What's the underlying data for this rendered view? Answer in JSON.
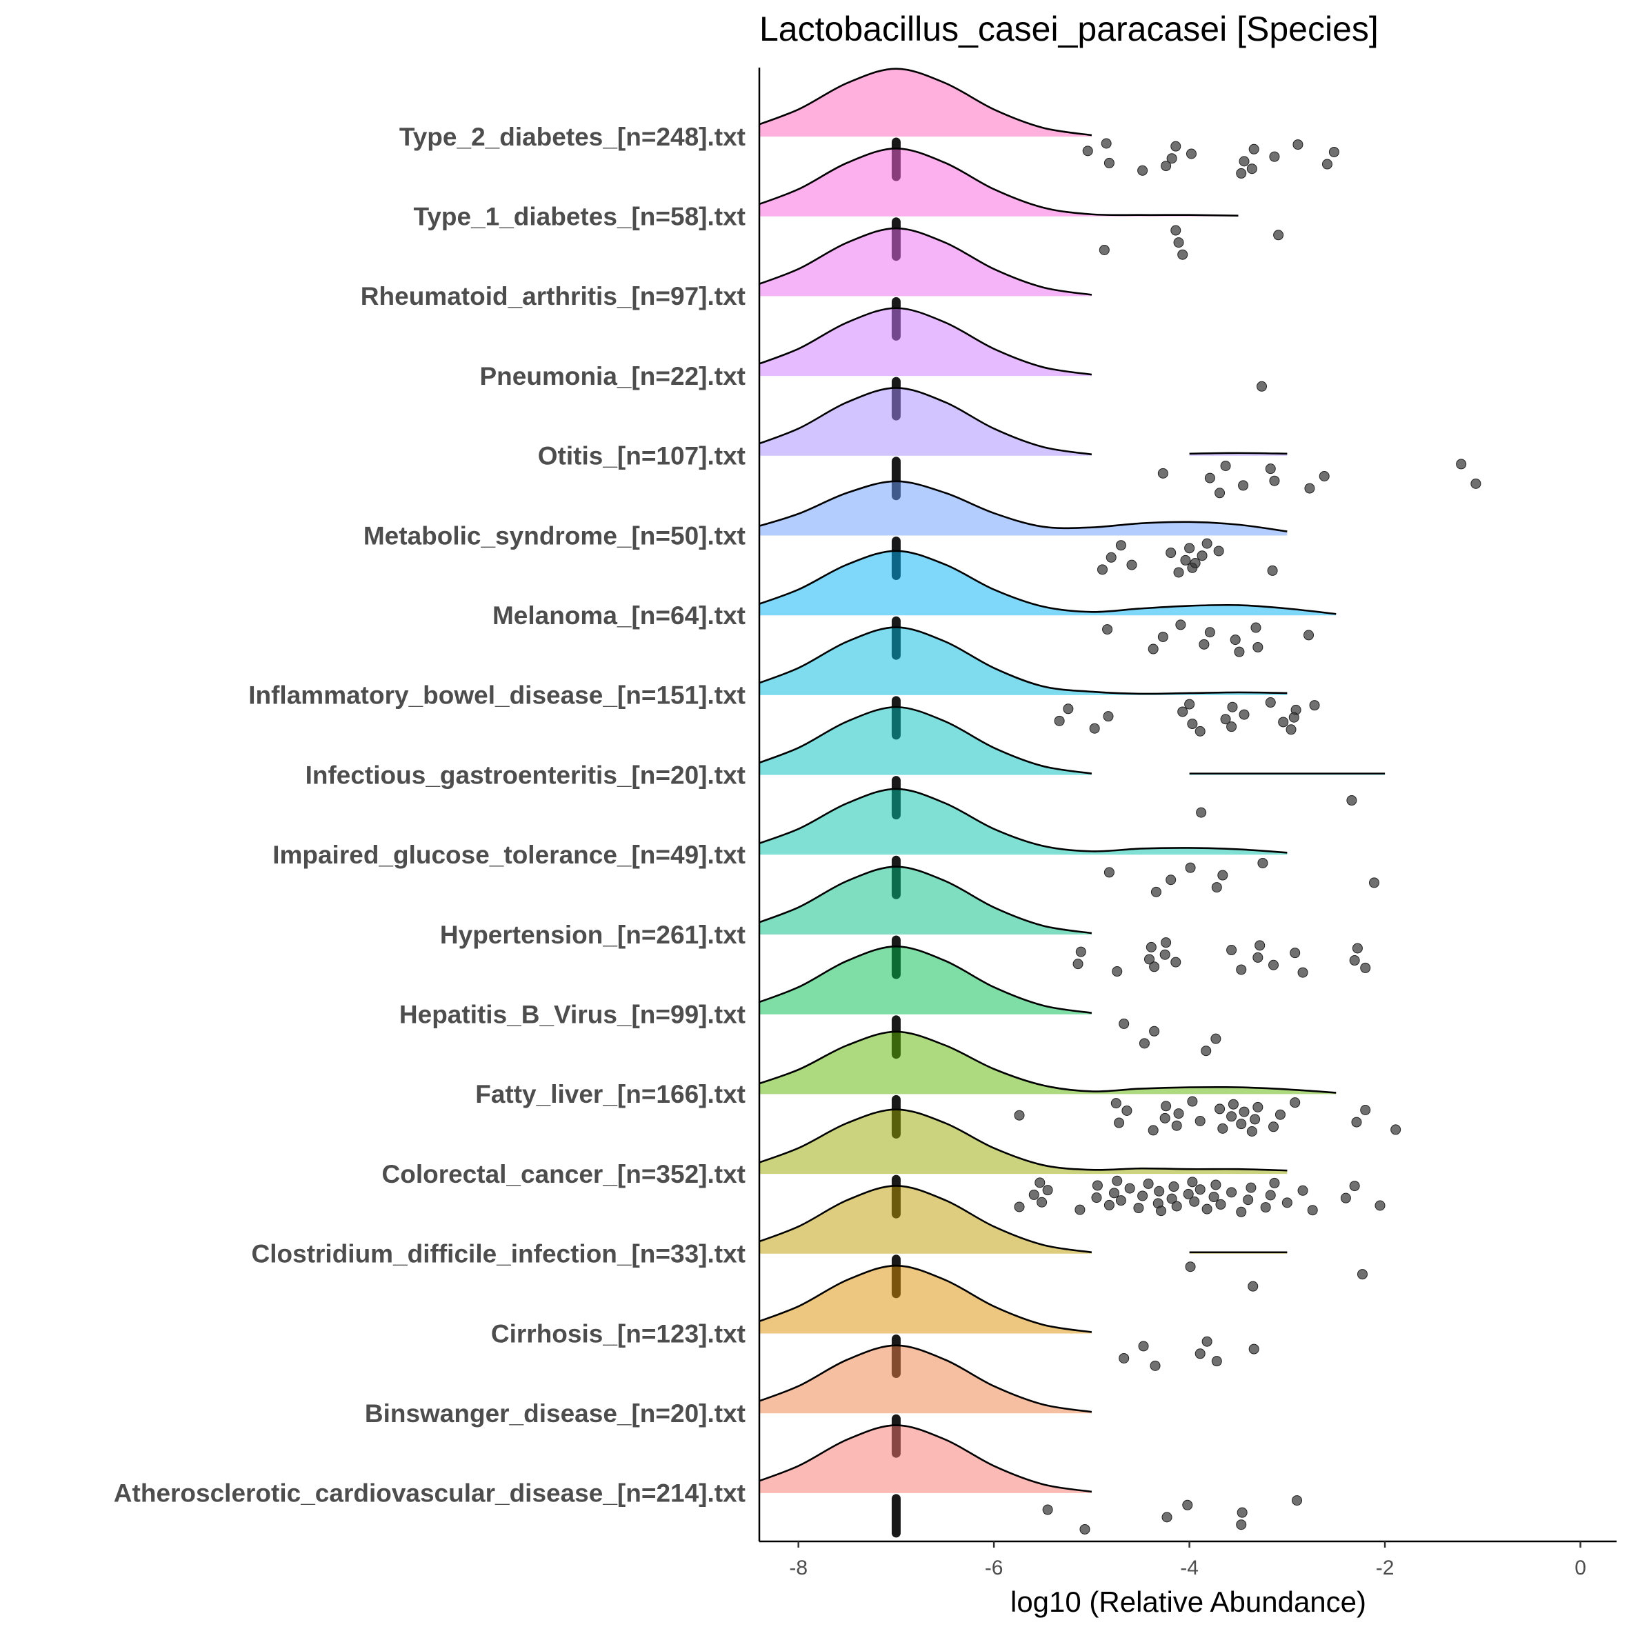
{
  "chart_data": {
    "type": "ridgeline",
    "title": "Lactobacillus_casei_paracasei [Species]",
    "xlabel": "log10 (Relative Abundance)",
    "xlim": [
      -8.4,
      0.37
    ],
    "xticks": [
      -8,
      -6,
      -4,
      -2,
      0
    ],
    "floor": -7,
    "density_x": [
      -8.5,
      -8,
      -7.5,
      -7,
      -6.5,
      -6,
      -5.5,
      -5,
      -4.5,
      -4,
      -3.5,
      -3,
      -2.5,
      -2
    ],
    "series": [
      {
        "name": "Type_2_diabetes_[n=248].txt",
        "color": "#FF62BC",
        "density": [
          0.13,
          0.4,
          0.79,
          1,
          0.79,
          0.4,
          0.13,
          0.02,
          null,
          null,
          null,
          null,
          null,
          null
        ],
        "points": [
          -4.85,
          -4.82,
          -5.04,
          -4.48,
          -4.18,
          -4.14,
          -4.24,
          -3.98,
          -3.47,
          -3.44,
          -3.34,
          -3.36,
          -3.13,
          -2.89,
          -2.59,
          -2.52
        ]
      },
      {
        "name": "Type_1_diabetes_[n=58].txt",
        "color": "#FA62DB",
        "density": [
          0.13,
          0.4,
          0.79,
          1,
          0.79,
          0.4,
          0.13,
          0.03,
          0.02,
          0.02,
          0.01,
          null,
          null,
          null
        ],
        "points": [
          -3.09,
          -4.07,
          -4.11,
          -4.14,
          -4.87
        ]
      },
      {
        "name": "Rheumatoid_arthritis_[n=97].txt",
        "color": "#EC69EF",
        "density": [
          0.13,
          0.4,
          0.79,
          1,
          0.79,
          0.4,
          0.13,
          0.02,
          null,
          null,
          null,
          null,
          null,
          null
        ],
        "points": []
      },
      {
        "name": "Pneumonia_[n=22].txt",
        "color": "#D077FF",
        "density": [
          0.13,
          0.4,
          0.79,
          1,
          0.79,
          0.4,
          0.13,
          0.02,
          null,
          null,
          null,
          null,
          null,
          null
        ],
        "points": [
          -3.26
        ]
      },
      {
        "name": "Otitis_[n=107].txt",
        "color": "#A58AFF",
        "density": [
          0.13,
          0.4,
          0.79,
          1,
          0.79,
          0.4,
          0.13,
          0.02,
          null,
          0.03,
          0.04,
          0.03,
          null,
          null
        ],
        "points": [
          -3.79,
          -3.63,
          -3.45,
          -4.27,
          -3.69,
          -3.13,
          -3.17,
          -2.77,
          -2.62,
          -1.22,
          -1.07
        ]
      },
      {
        "name": "Metabolic_syndrome_[n=50].txt",
        "color": "#6A9BFF",
        "density": [
          0.1,
          0.32,
          0.63,
          0.8,
          0.63,
          0.33,
          0.13,
          0.12,
          0.18,
          0.2,
          0.16,
          0.06,
          null,
          null
        ],
        "points": [
          -4.89,
          -4.8,
          -4.7,
          -4.59,
          -4.19,
          -4.11,
          -4.04,
          -4.0,
          -3.97,
          -3.87,
          -3.82,
          -3.94,
          -3.7,
          -3.15
        ]
      },
      {
        "name": "Melanoma_[n=64].txt",
        "color": "#00B0F6",
        "density": [
          0.12,
          0.38,
          0.75,
          0.95,
          0.75,
          0.38,
          0.13,
          0.05,
          0.1,
          0.14,
          0.15,
          0.1,
          0.02,
          null
        ],
        "points": [
          -4.84,
          -4.37,
          -4.27,
          -4.09,
          -3.85,
          -3.79,
          -3.49,
          -3.53,
          -3.32,
          -3.3,
          -2.78
        ]
      },
      {
        "name": "Inflammatory_bowel_disease_[n=151].txt",
        "color": "#00BAE0",
        "density": [
          0.13,
          0.4,
          0.79,
          1,
          0.79,
          0.4,
          0.13,
          0.05,
          0.02,
          0.03,
          0.04,
          0.03,
          null,
          null
        ],
        "points": [
          -5.33,
          -5.24,
          -4.97,
          -4.83,
          -4.0,
          -3.97,
          -4.07,
          -3.89,
          -3.63,
          -3.56,
          -3.57,
          -3.44,
          -3.17,
          -3.04,
          -2.91,
          -2.96,
          -2.93,
          -2.72
        ]
      },
      {
        "name": "Infectious_gastroenteritis_[n=20].txt",
        "color": "#00C0C0",
        "density": [
          0.13,
          0.4,
          0.79,
          1,
          0.79,
          0.4,
          0.13,
          0.02,
          null,
          0.02,
          0.02,
          0.02,
          0.02,
          0.02
        ],
        "points": [
          -3.88,
          -2.34
        ]
      },
      {
        "name": "Impaired_glucose_tolerance_[n=49].txt",
        "color": "#00C1A7",
        "density": [
          0.12,
          0.38,
          0.76,
          0.97,
          0.76,
          0.38,
          0.13,
          0.05,
          0.09,
          0.1,
          0.08,
          0.03,
          null,
          null
        ],
        "points": [
          -4.82,
          -4.34,
          -4.19,
          -3.99,
          -3.72,
          -3.66,
          -3.25,
          -2.11
        ]
      },
      {
        "name": "Hypertension_[n=261].txt",
        "color": "#00BE81",
        "density": [
          0.13,
          0.4,
          0.79,
          1,
          0.79,
          0.4,
          0.13,
          0.02,
          null,
          null,
          null,
          null,
          null,
          null
        ],
        "points": [
          -5.14,
          -5.11,
          -4.74,
          -4.41,
          -4.39,
          -4.36,
          -4.25,
          -4.24,
          -4.14,
          -3.57,
          -3.47,
          -3.3,
          -3.28,
          -3.14,
          -2.92,
          -2.84,
          -2.31,
          -2.28,
          -2.2
        ]
      },
      {
        "name": "Hepatitis_B_Virus_[n=99].txt",
        "color": "#00BB4E",
        "density": [
          0.13,
          0.4,
          0.79,
          1,
          0.79,
          0.4,
          0.13,
          0.02,
          null,
          null,
          null,
          null,
          null,
          null
        ],
        "points": [
          -4.67,
          -4.46,
          -4.36,
          -3.83,
          -3.73
        ]
      },
      {
        "name": "Fatty_liver_[n=166].txt",
        "color": "#5BB300",
        "density": [
          0.11,
          0.36,
          0.72,
          0.92,
          0.72,
          0.37,
          0.13,
          0.04,
          0.08,
          0.1,
          0.1,
          0.07,
          0.02,
          null
        ],
        "points": [
          -5.74,
          -4.75,
          -4.72,
          -4.64,
          -4.37,
          -4.25,
          -4.24,
          -4.13,
          -4.11,
          -3.97,
          -3.89,
          -3.69,
          -3.66,
          -3.57,
          -3.55,
          -3.47,
          -3.44,
          -3.36,
          -3.33,
          -3.3,
          -3.14,
          -3.07,
          -2.92,
          -2.29,
          -2.2,
          -1.89
        ]
      },
      {
        "name": "Colorectal_cancer_[n=352].txt",
        "color": "#99A800",
        "density": [
          0.12,
          0.38,
          0.75,
          0.95,
          0.75,
          0.38,
          0.13,
          0.06,
          0.08,
          0.07,
          0.07,
          0.05,
          null,
          null
        ],
        "points": [
          -5.74,
          -5.59,
          -5.53,
          -5.51,
          -5.45,
          -5.12,
          -4.95,
          -4.94,
          -4.82,
          -4.77,
          -4.74,
          -4.7,
          -4.61,
          -4.52,
          -4.48,
          -4.42,
          -4.32,
          -4.31,
          -4.29,
          -4.18,
          -4.16,
          -4.13,
          -4.01,
          -3.97,
          -3.95,
          -3.89,
          -3.82,
          -3.75,
          -3.73,
          -3.68,
          -3.57,
          -3.47,
          -3.4,
          -3.37,
          -3.22,
          -3.17,
          -3.13,
          -3.0,
          -2.84,
          -2.74,
          -2.4,
          -2.31,
          -2.05
        ]
      },
      {
        "name": "Clostridium_difficile_infection_[n=33].txt",
        "color": "#BE9C00",
        "density": [
          0.13,
          0.4,
          0.79,
          1,
          0.79,
          0.4,
          0.13,
          0.02,
          null,
          0.02,
          0.02,
          0.02,
          null,
          null
        ],
        "points": [
          -3.99,
          -3.35,
          -2.23
        ]
      },
      {
        "name": "Cirrhosis_[n=123].txt",
        "color": "#DB8E00",
        "density": [
          0.13,
          0.4,
          0.79,
          1,
          0.79,
          0.4,
          0.13,
          0.02,
          null,
          null,
          null,
          null,
          null,
          null
        ],
        "points": [
          -4.67,
          -4.47,
          -4.35,
          -3.89,
          -3.82,
          -3.72,
          -3.34
        ]
      },
      {
        "name": "Binswanger_disease_[n=20].txt",
        "color": "#EE8043",
        "density": [
          0.13,
          0.4,
          0.79,
          1,
          0.79,
          0.4,
          0.13,
          0.02,
          null,
          null,
          null,
          null,
          null,
          null
        ],
        "points": []
      },
      {
        "name": "Atherosclerotic_cardiovascular_disease_[n=214].txt",
        "color": "#F8766D",
        "density": [
          0.13,
          0.4,
          0.79,
          1,
          0.79,
          0.4,
          0.13,
          0.02,
          null,
          null,
          null,
          null,
          null,
          null
        ],
        "points": [
          -5.45,
          -5.07,
          -4.23,
          -4.02,
          -3.47,
          -3.46,
          -2.9
        ]
      }
    ]
  }
}
